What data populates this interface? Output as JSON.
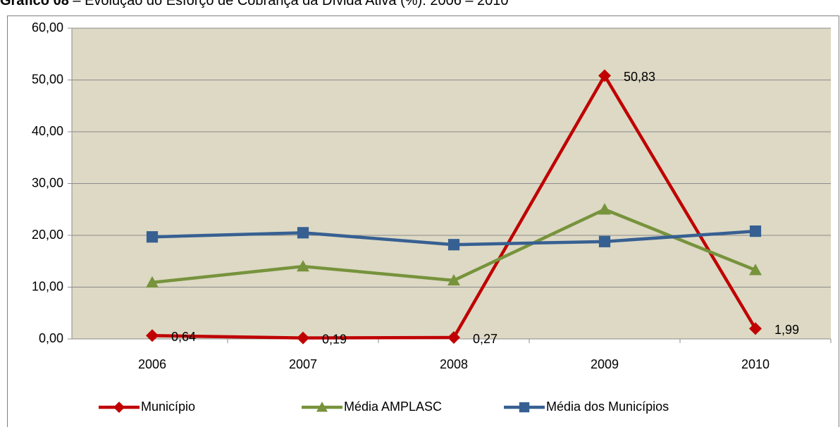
{
  "chart_data": {
    "type": "line",
    "title_prefix": "Gráfico 08",
    "title": " – Evolução do Esforço de Cobrança da Dívida Ativa (%): 2006 – 2010",
    "categories": [
      "2006",
      "2007",
      "2008",
      "2009",
      "2010"
    ],
    "series": [
      {
        "name": "Município",
        "color": "#c00000",
        "marker": "diamond",
        "values": [
          0.64,
          0.19,
          0.27,
          50.83,
          1.99
        ],
        "value_labels": [
          "0,64",
          "0,19",
          "0,27",
          "50,83",
          "1,99"
        ]
      },
      {
        "name": "Média AMPLASC",
        "color": "#77933c",
        "marker": "triangle",
        "values": [
          10.9,
          14.0,
          11.3,
          25.0,
          13.3
        ]
      },
      {
        "name": "Média dos Municípios",
        "color": "#376092",
        "marker": "square",
        "values": [
          19.7,
          20.5,
          18.2,
          18.8,
          20.8
        ]
      }
    ],
    "ylim": [
      0,
      60
    ],
    "yticks": [
      {
        "value": 0,
        "label": "0,00"
      },
      {
        "value": 10,
        "label": "10,00"
      },
      {
        "value": 20,
        "label": "20,00"
      },
      {
        "value": 30,
        "label": "30,00"
      },
      {
        "value": 40,
        "label": "40,00"
      },
      {
        "value": 50,
        "label": "50,00"
      },
      {
        "value": 60,
        "label": "60,00"
      }
    ],
    "grid": true,
    "legend": "bottom"
  }
}
